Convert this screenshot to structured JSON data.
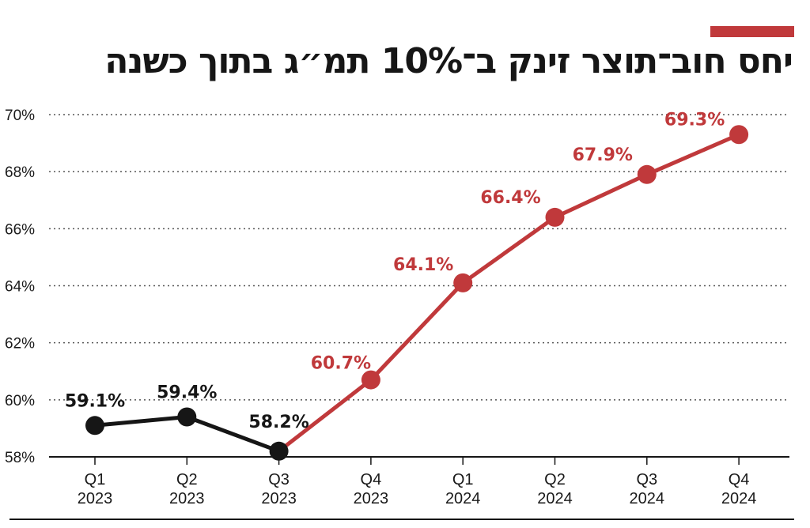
{
  "colors": {
    "actual": "#161616",
    "forecast": "#c0393b",
    "grid": "#555555"
  },
  "chart_data": {
    "type": "line",
    "title": "יחס חוב־תוצר זינק ב־10% תמ״ג בתוך כשנה",
    "xlabel": "",
    "ylabel": "",
    "ylim": [
      58,
      70
    ],
    "yticks": [
      58,
      60,
      62,
      64,
      66,
      68,
      70
    ],
    "ytick_labels": [
      "58%",
      "60%",
      "62%",
      "64%",
      "66%",
      "68%",
      "70%"
    ],
    "grid": true,
    "categories": [
      {
        "q": "Q1",
        "year": "2023"
      },
      {
        "q": "Q2",
        "year": "2023"
      },
      {
        "q": "Q3",
        "year": "2023"
      },
      {
        "q": "Q4",
        "year": "2023"
      },
      {
        "q": "Q1",
        "year": "2024"
      },
      {
        "q": "Q2",
        "year": "2024"
      },
      {
        "q": "Q3",
        "year": "2024"
      },
      {
        "q": "Q4",
        "year": "2024"
      }
    ],
    "values": [
      59.1,
      59.4,
      58.2,
      60.7,
      64.1,
      66.4,
      67.9,
      69.3
    ],
    "value_labels": [
      "59.1%",
      "59.4%",
      "58.2%",
      "60.7%",
      "64.1%",
      "66.4%",
      "67.9%",
      "69.3%"
    ],
    "segments": [
      {
        "from": 0,
        "to": 2,
        "color": "#161616"
      },
      {
        "from": 2,
        "to": 7,
        "color": "#c0393b"
      }
    ]
  }
}
